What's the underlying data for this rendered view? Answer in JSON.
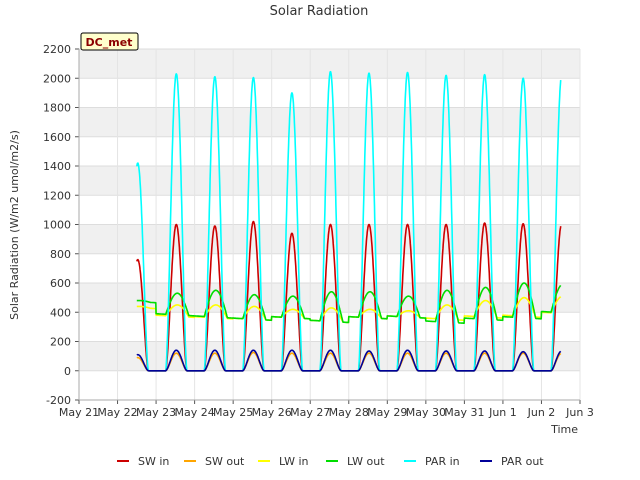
{
  "chart_data": {
    "type": "line",
    "title": "Solar Radiation",
    "xlabel": "Time",
    "ylabel": "Solar Radiation (W/m2 umol/m2/s)",
    "annotation": "DC_met",
    "ylim": [
      -200,
      2200
    ],
    "yticks": [
      -200,
      0,
      200,
      400,
      600,
      800,
      1000,
      1200,
      1400,
      1600,
      1800,
      2000,
      2200
    ],
    "xlim": [
      "2024-05-21",
      "2024-06-03"
    ],
    "xticks": [
      {
        "date": "2024-05-21",
        "label": "May 21"
      },
      {
        "date": "2024-05-22",
        "label": "May 22"
      },
      {
        "date": "2024-05-23",
        "label": "May 23"
      },
      {
        "date": "2024-05-24",
        "label": "May 24"
      },
      {
        "date": "2024-05-25",
        "label": "May 25"
      },
      {
        "date": "2024-05-26",
        "label": "May 26"
      },
      {
        "date": "2024-05-27",
        "label": "May 27"
      },
      {
        "date": "2024-05-28",
        "label": "May 28"
      },
      {
        "date": "2024-05-29",
        "label": "May 29"
      },
      {
        "date": "2024-05-30",
        "label": "May 30"
      },
      {
        "date": "2024-05-31",
        "label": "May 31"
      },
      {
        "date": "2024-06-01",
        "label": "Jun 1"
      },
      {
        "date": "2024-06-02",
        "label": "Jun 2"
      },
      {
        "date": "2024-06-03",
        "label": "Jun 3"
      }
    ],
    "grid": true,
    "background_bands": true,
    "legend_position": "bottom",
    "data_start": "2024-05-22",
    "data_end": "2024-06-02",
    "days": [
      "2024-05-22",
      "2024-05-23",
      "2024-05-24",
      "2024-05-25",
      "2024-05-26",
      "2024-05-27",
      "2024-05-28",
      "2024-05-29",
      "2024-05-30",
      "2024-05-31",
      "2024-06-01",
      "2024-06-02"
    ],
    "series": [
      {
        "name": "SW in",
        "color": "#cc0000",
        "kind": "solar",
        "night": 0,
        "daily_peaks": [
          760,
          1000,
          990,
          1020,
          940,
          1000,
          1000,
          1000,
          1000,
          1010,
          1005,
          1005
        ]
      },
      {
        "name": "SW out",
        "color": "#ffa500",
        "kind": "solar",
        "night": 0,
        "daily_peaks": [
          90,
          120,
          120,
          125,
          120,
          120,
          120,
          120,
          120,
          120,
          120,
          120
        ]
      },
      {
        "name": "LW in",
        "color": "#ffff00",
        "kind": "longwave",
        "daily_base": [
          440,
          380,
          370,
          360,
          370,
          345,
          370,
          375,
          360,
          375,
          380,
          400
        ],
        "daily_peaks": [
          440,
          450,
          450,
          440,
          420,
          430,
          420,
          410,
          450,
          480,
          500,
          510
        ]
      },
      {
        "name": "LW out",
        "color": "#00dd00",
        "kind": "longwave",
        "daily_base": [
          480,
          390,
          375,
          360,
          370,
          345,
          370,
          375,
          340,
          360,
          370,
          405
        ],
        "daily_peaks": [
          480,
          530,
          550,
          520,
          510,
          540,
          540,
          510,
          550,
          570,
          600,
          590
        ]
      },
      {
        "name": "PAR in",
        "color": "#00ffff",
        "kind": "solar",
        "night": 0,
        "daily_peaks": [
          1420,
          2030,
          2010,
          2005,
          1900,
          2045,
          2035,
          2040,
          2020,
          2025,
          2000,
          2020
        ]
      },
      {
        "name": "PAR out",
        "color": "#000099",
        "kind": "solar",
        "night": 0,
        "daily_peaks": [
          110,
          140,
          140,
          140,
          140,
          140,
          135,
          140,
          135,
          135,
          130,
          135
        ]
      }
    ]
  }
}
